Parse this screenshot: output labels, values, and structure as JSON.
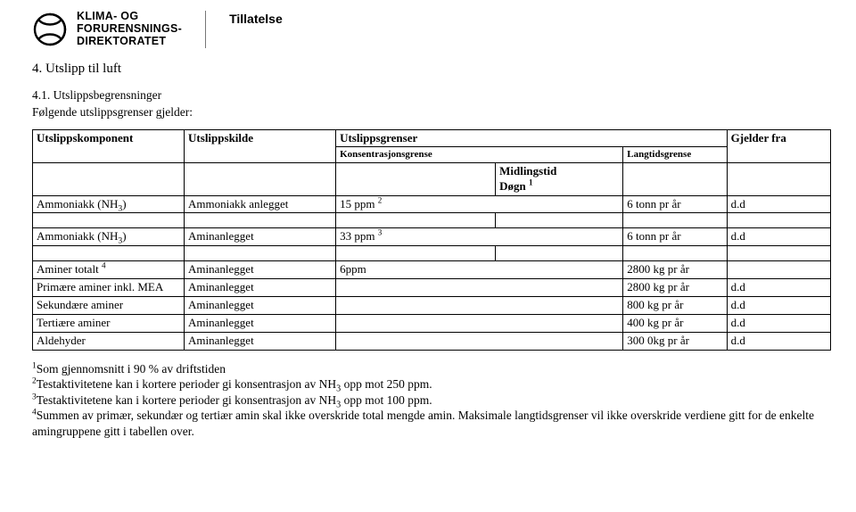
{
  "header": {
    "agency_line1": "KLIMA- OG",
    "agency_line2": "FORURENSNINGS-",
    "agency_line3": "DIREKTORATET",
    "doc_type": "Tillatelse"
  },
  "section": {
    "h1": "4. Utslipp til luft",
    "h2": "4.1. Utslippsbegrensninger",
    "intro": "Følgende utslippsgrenser gjelder:"
  },
  "table": {
    "head": {
      "comp": "Utslippskomponent",
      "source": "Utslippskilde",
      "limits": "Utslippsgrenser",
      "conc": "Konsentrasjonsgrense",
      "long": "Langtidsgrense",
      "from": "Gjelder fra",
      "avg_label": "Midlingstid",
      "avg_unit_prefix": "Døgn ",
      "avg_unit_sup": "1"
    },
    "rows": [
      {
        "comp_pre": "Ammoniakk (NH",
        "comp_sub": "3",
        "comp_post": ")",
        "src": "Ammoniakk anlegget",
        "conc_pre": "15 ppm ",
        "conc_sup": "2",
        "long": "6 tonn pr år",
        "from": "d.d"
      },
      {
        "blank": true
      },
      {
        "comp_pre": "Ammoniakk (NH",
        "comp_sub": "3",
        "comp_post": ")",
        "src": "Aminanlegget",
        "conc_pre": "33 ppm ",
        "conc_sup": "3",
        "long": "6 tonn pr år",
        "from": "d.d"
      },
      {
        "blank": true
      },
      {
        "comp_pre": "Aminer totalt ",
        "comp_sup": "4",
        "src": "Aminanlegget",
        "conc_pre": "6ppm",
        "long": "2800 kg pr år",
        "from": ""
      },
      {
        "comp_pre": "Primære aminer inkl. MEA",
        "src": "Aminanlegget",
        "conc_pre": "",
        "long": "2800 kg pr år",
        "from": "d.d"
      },
      {
        "comp_pre": "Sekundære aminer",
        "src": "Aminanlegget",
        "conc_pre": "",
        "long": "800 kg pr år",
        "from": "d.d"
      },
      {
        "comp_pre": "Tertiære aminer",
        "src": "Aminanlegget",
        "conc_pre": "",
        "long": "400 kg pr år",
        "from": "d.d"
      },
      {
        "comp_pre": "Aldehyder",
        "src": "Aminanlegget",
        "conc_pre": "",
        "long": "300 0kg pr år",
        "from": "d.d"
      }
    ]
  },
  "footnotes": {
    "n1_sup": "1",
    "n1": "Som gjennomsnitt i 90 % av driftstiden",
    "n2_sup": "2",
    "n2_pre": "Testaktivitetene kan i kortere perioder gi konsentrasjon av NH",
    "n2_sub": "3",
    "n2_post": " opp mot 250 ppm.",
    "n3_sup": "3",
    "n3_pre": "Testaktivitetene kan i kortere perioder gi konsentrasjon av NH",
    "n3_sub": "3",
    "n3_post": " opp mot 100 ppm.",
    "n4_sup": "4",
    "n4": "Summen av primær, sekundær og tertiær amin skal ikke overskride total mengde amin. Maksimale langtidsgrenser vil ikke overskride verdiene gitt for de enkelte amingruppene gitt i tabellen over."
  }
}
